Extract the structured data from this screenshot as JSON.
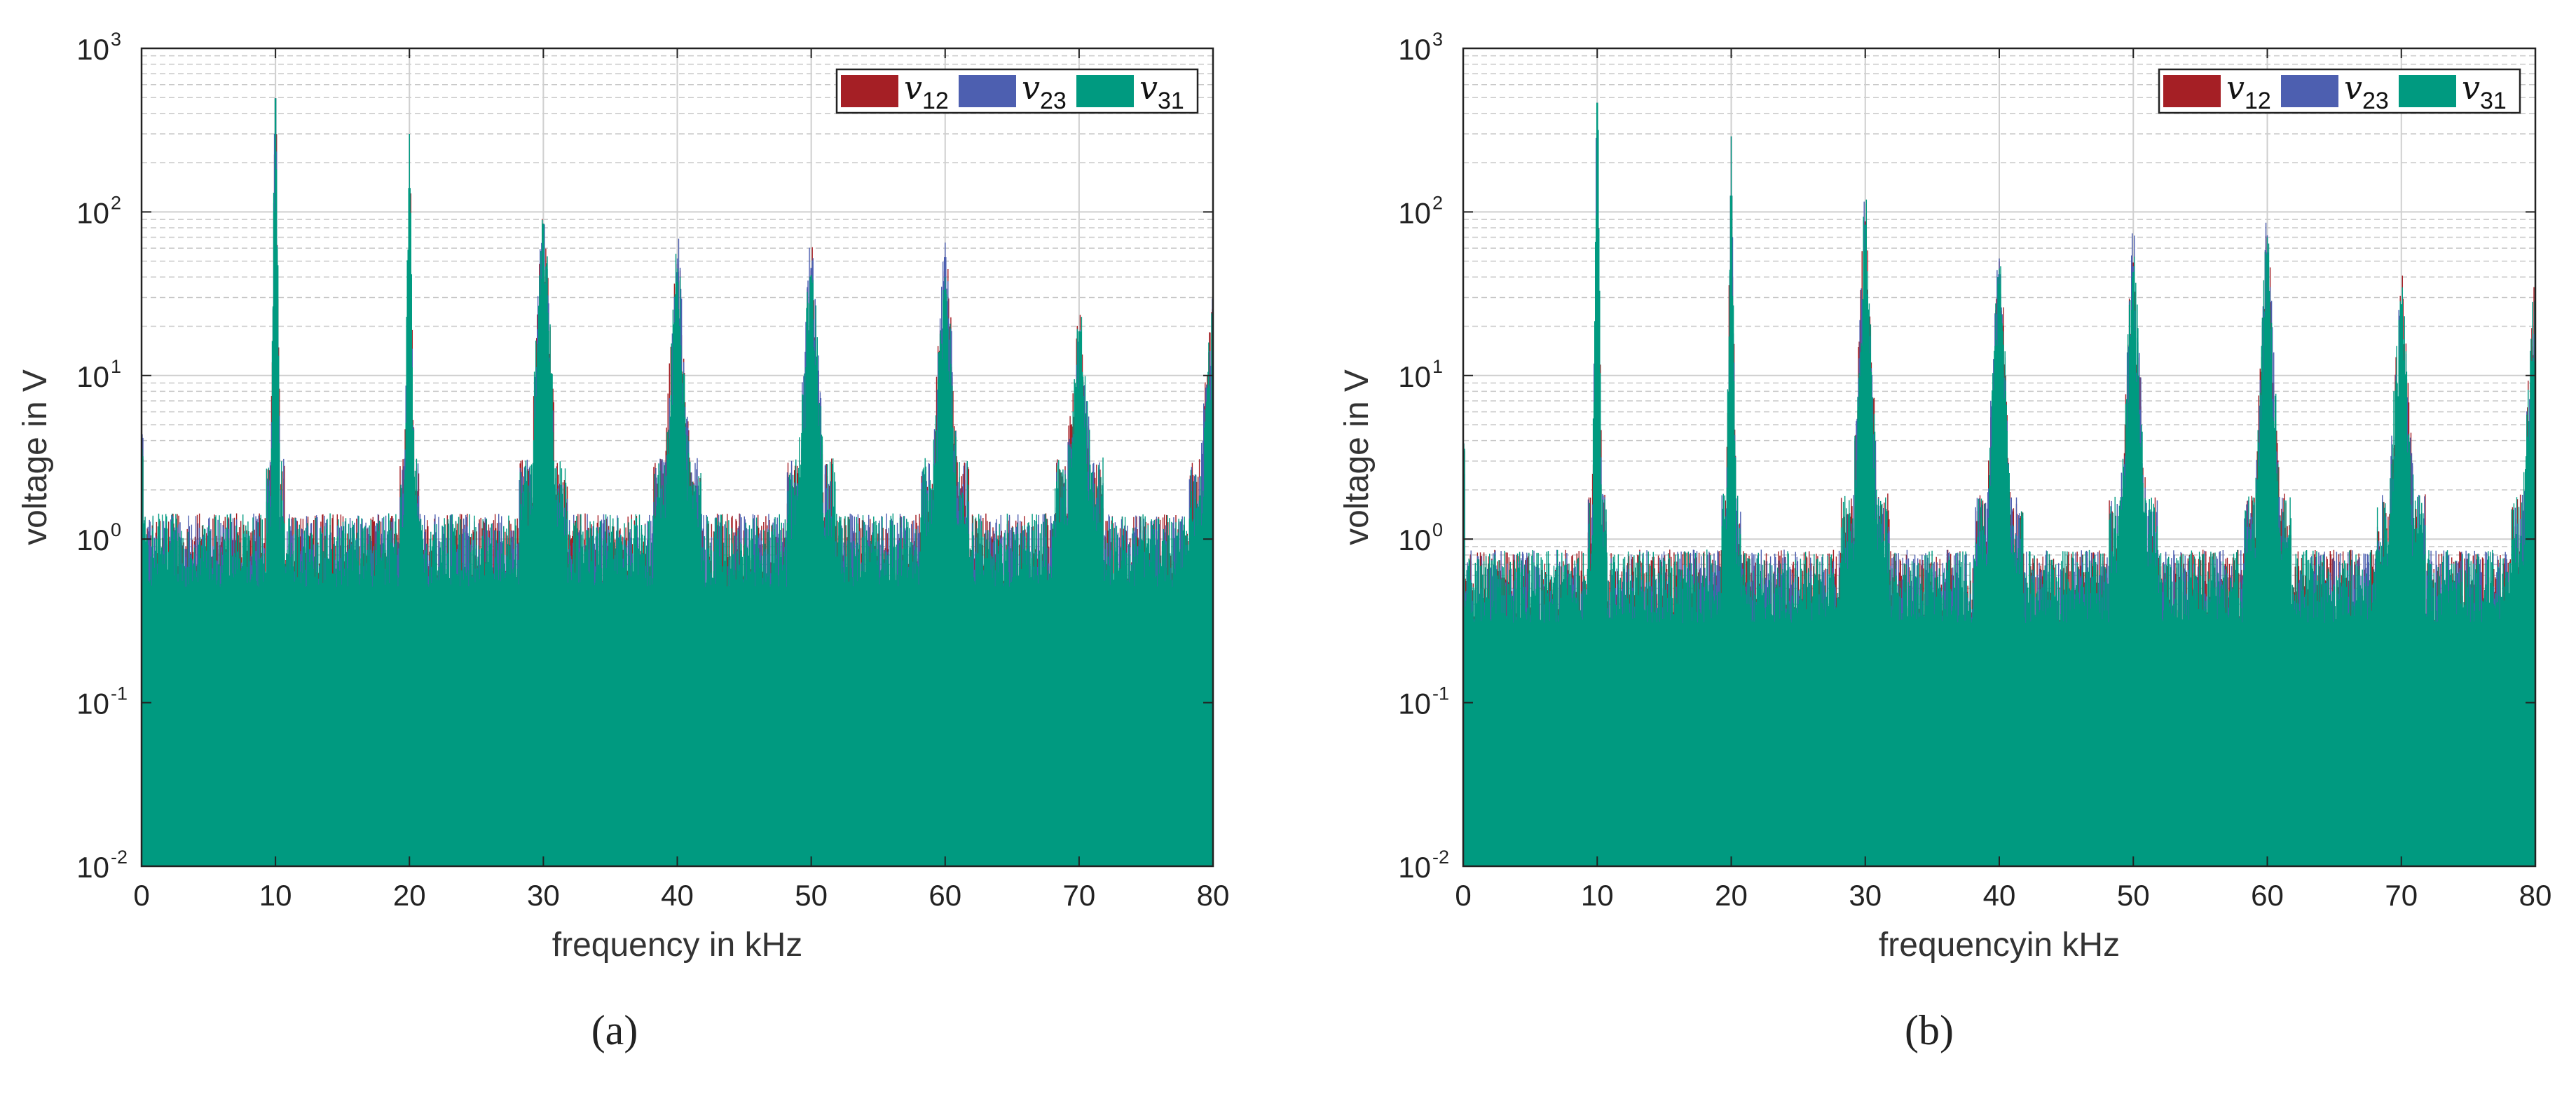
{
  "figure": {
    "colors": {
      "v12": "#a51f25",
      "v23": "#4d5fb0",
      "v31": "#009a80",
      "axis": "#222222",
      "grid": "#cccccc"
    }
  },
  "chart_data": [
    {
      "type": "bar",
      "panel_label": "(a)",
      "title": "",
      "xlabel": "frequency in kHz",
      "ylabel": "voltage in V",
      "xlim": [
        0,
        80
      ],
      "ylim": [
        0.01,
        1000
      ],
      "yscale": "log",
      "x_ticks": [
        "0",
        "10",
        "20",
        "30",
        "40",
        "50",
        "60",
        "70",
        "80"
      ],
      "y_ticks": [
        {
          "base": "10",
          "exp": "-2"
        },
        {
          "base": "10",
          "exp": "-1"
        },
        {
          "base": "10",
          "exp": "0"
        },
        {
          "base": "10",
          "exp": "1"
        },
        {
          "base": "10",
          "exp": "2"
        },
        {
          "base": "10",
          "exp": "3"
        }
      ],
      "grid": true,
      "legend_position": "top-right",
      "legend": [
        {
          "name": "v",
          "sub": "12"
        },
        {
          "name": "v",
          "sub": "23"
        },
        {
          "name": "v",
          "sub": "31"
        }
      ],
      "noise_floor_v": 1.0,
      "series": [
        {
          "name": "v12",
          "peaks": [
            {
              "f": 10,
              "v": 780
            },
            {
              "f": 20,
              "v": 300
            },
            {
              "f": 30,
              "v": 95
            },
            {
              "f": 40,
              "v": 48
            },
            {
              "f": 50,
              "v": 48
            },
            {
              "f": 60,
              "v": 55
            },
            {
              "f": 70,
              "v": 20
            },
            {
              "f": 80,
              "v": 30
            }
          ]
        },
        {
          "name": "v23",
          "peaks": [
            {
              "f": 10,
              "v": 780
            },
            {
              "f": 20,
              "v": 300
            },
            {
              "f": 30,
              "v": 95
            },
            {
              "f": 40,
              "v": 52
            },
            {
              "f": 50,
              "v": 50
            },
            {
              "f": 60,
              "v": 65
            },
            {
              "f": 70,
              "v": 18
            },
            {
              "f": 80,
              "v": 35
            }
          ]
        },
        {
          "name": "v31",
          "peaks": [
            {
              "f": 10,
              "v": 780
            },
            {
              "f": 20,
              "v": 300
            },
            {
              "f": 30,
              "v": 95
            },
            {
              "f": 40,
              "v": 45
            },
            {
              "f": 50,
              "v": 45
            },
            {
              "f": 60,
              "v": 40
            },
            {
              "f": 70,
              "v": 20
            },
            {
              "f": 80,
              "v": 20
            }
          ]
        }
      ]
    },
    {
      "type": "bar",
      "panel_label": "(b)",
      "title": "",
      "xlabel": "frequencyin kHz",
      "ylabel": "voltage in V",
      "xlim": [
        0,
        80
      ],
      "ylim": [
        0.01,
        1000
      ],
      "yscale": "log",
      "x_ticks": [
        "0",
        "10",
        "20",
        "30",
        "40",
        "50",
        "60",
        "70",
        "80"
      ],
      "y_ticks": [
        {
          "base": "10",
          "exp": "-2"
        },
        {
          "base": "10",
          "exp": "-1"
        },
        {
          "base": "10",
          "exp": "0"
        },
        {
          "base": "10",
          "exp": "1"
        },
        {
          "base": "10",
          "exp": "2"
        },
        {
          "base": "10",
          "exp": "3"
        }
      ],
      "grid": true,
      "legend_position": "top-right",
      "legend": [
        {
          "name": "v",
          "sub": "12"
        },
        {
          "name": "v",
          "sub": "23"
        },
        {
          "name": "v",
          "sub": "31"
        }
      ],
      "noise_floor_v": 0.6,
      "series": [
        {
          "name": "v12",
          "peaks": [
            {
              "f": 10,
              "v": 760
            },
            {
              "f": 20,
              "v": 290
            },
            {
              "f": 30,
              "v": 100
            },
            {
              "f": 40,
              "v": 50
            },
            {
              "f": 50,
              "v": 55
            },
            {
              "f": 60,
              "v": 70
            },
            {
              "f": 70,
              "v": 28
            },
            {
              "f": 80,
              "v": 35
            }
          ]
        },
        {
          "name": "v23",
          "peaks": [
            {
              "f": 10,
              "v": 760
            },
            {
              "f": 20,
              "v": 290
            },
            {
              "f": 30,
              "v": 95
            },
            {
              "f": 40,
              "v": 52
            },
            {
              "f": 50,
              "v": 52
            },
            {
              "f": 60,
              "v": 72
            },
            {
              "f": 70,
              "v": 25
            },
            {
              "f": 80,
              "v": 30
            }
          ]
        },
        {
          "name": "v31",
          "peaks": [
            {
              "f": 10,
              "v": 760
            },
            {
              "f": 20,
              "v": 290
            },
            {
              "f": 30,
              "v": 95
            },
            {
              "f": 40,
              "v": 45
            },
            {
              "f": 50,
              "v": 48
            },
            {
              "f": 60,
              "v": 70
            },
            {
              "f": 70,
              "v": 30
            },
            {
              "f": 80,
              "v": 35
            }
          ]
        }
      ]
    }
  ]
}
